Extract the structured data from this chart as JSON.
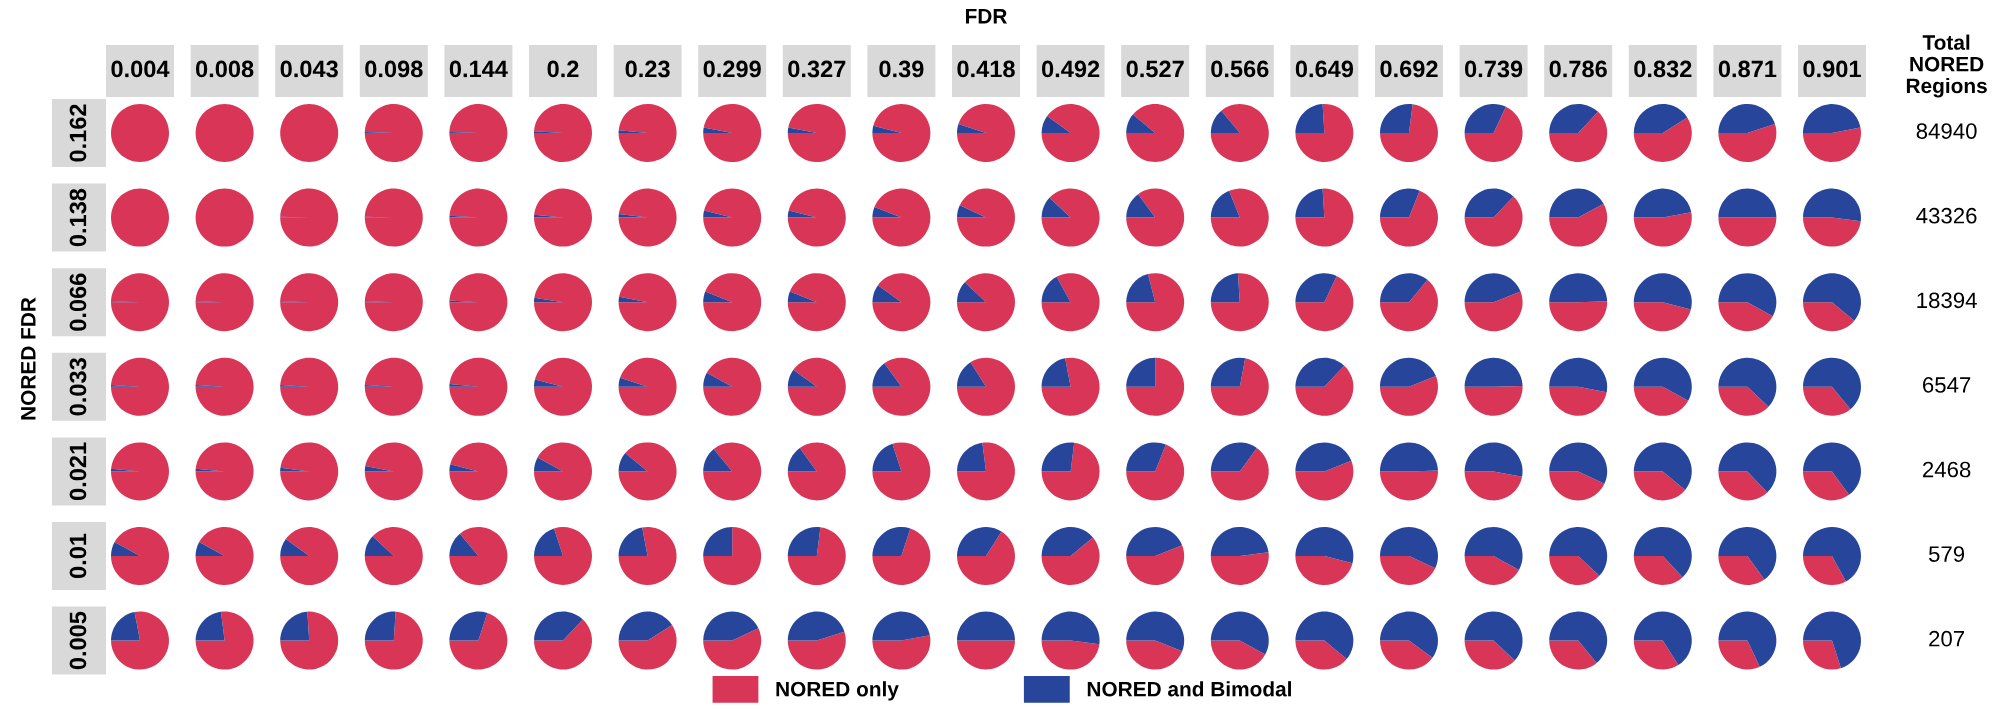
{
  "chart_data": [
    {
      "type": "other",
      "ylabel": "NORED FDR"
    },
    {
      "type": "pie",
      "title": "FDR",
      "ylabel": "0.162",
      "y2label": "84940",
      "annotations": [
        "Total\nNORED\nRegions"
      ],
      "legend": "bottom",
      "categories": [
        "NORED only",
        "NORED and Bimodal"
      ],
      "colors": [
        "#d93657",
        "#27469b"
      ],
      "series": [
        {
          "name": "0.004",
          "values": [
            100,
            0
          ]
        },
        {
          "name": "0.008",
          "values": [
            100,
            0
          ]
        },
        {
          "name": "0.043",
          "values": [
            100,
            0
          ]
        },
        {
          "name": "0.098",
          "values": [
            99.5,
            0.5
          ]
        },
        {
          "name": "0.144",
          "values": [
            99.5,
            0.5
          ]
        },
        {
          "name": "0.2",
          "values": [
            99,
            1
          ]
        },
        {
          "name": "0.23",
          "values": [
            98.5,
            1.5
          ]
        },
        {
          "name": "0.299",
          "values": [
            97,
            3
          ]
        },
        {
          "name": "0.327",
          "values": [
            97,
            3
          ]
        },
        {
          "name": "0.39",
          "values": [
            96,
            4
          ]
        },
        {
          "name": "0.418",
          "values": [
            95,
            5
          ]
        },
        {
          "name": "0.492",
          "values": [
            90,
            10
          ]
        },
        {
          "name": "0.527",
          "values": [
            89,
            11
          ]
        },
        {
          "name": "0.566",
          "values": [
            86,
            14
          ]
        },
        {
          "name": "0.649",
          "values": [
            76,
            24
          ]
        },
        {
          "name": "0.692",
          "values": [
            73,
            27
          ]
        },
        {
          "name": "0.739",
          "values": [
            68,
            32
          ]
        },
        {
          "name": "0.786",
          "values": [
            63,
            37
          ]
        },
        {
          "name": "0.832",
          "values": [
            59,
            41
          ]
        },
        {
          "name": "0.871",
          "values": [
            55,
            45
          ]
        },
        {
          "name": "0.901",
          "values": [
            53,
            47
          ]
        }
      ]
    },
    {
      "type": "pie",
      "ylabel": "0.138",
      "y2label": "43326",
      "colors": [
        "#d93657",
        "#27469b"
      ],
      "series": [
        {
          "values": [
            100,
            0
          ]
        },
        {
          "values": [
            100,
            0
          ]
        },
        {
          "values": [
            99.5,
            0.5
          ]
        },
        {
          "values": [
            99.5,
            0.5
          ]
        },
        {
          "values": [
            99,
            1
          ]
        },
        {
          "values": [
            98.5,
            1.5
          ]
        },
        {
          "values": [
            98,
            2
          ]
        },
        {
          "values": [
            96,
            4
          ]
        },
        {
          "values": [
            96,
            4
          ]
        },
        {
          "values": [
            94,
            6
          ]
        },
        {
          "values": [
            93,
            7
          ]
        },
        {
          "values": [
            88,
            12
          ]
        },
        {
          "values": [
            85,
            15
          ]
        },
        {
          "values": [
            81,
            19
          ]
        },
        {
          "values": [
            76,
            24
          ]
        },
        {
          "values": [
            69,
            31
          ]
        },
        {
          "values": [
            63,
            37
          ]
        },
        {
          "values": [
            58,
            42
          ]
        },
        {
          "values": [
            53,
            47
          ]
        },
        {
          "values": [
            50,
            50
          ]
        },
        {
          "values": [
            48,
            52
          ]
        }
      ]
    },
    {
      "type": "pie",
      "ylabel": "0.066",
      "y2label": "18394",
      "colors": [
        "#d93657",
        "#27469b"
      ],
      "series": [
        {
          "values": [
            99.5,
            0.5
          ]
        },
        {
          "values": [
            99.5,
            0.5
          ]
        },
        {
          "values": [
            99.5,
            0.5
          ]
        },
        {
          "values": [
            99.5,
            0.5
          ]
        },
        {
          "values": [
            99,
            1
          ]
        },
        {
          "values": [
            97.5,
            2.5
          ]
        },
        {
          "values": [
            97,
            3
          ]
        },
        {
          "values": [
            94,
            6
          ]
        },
        {
          "values": [
            94,
            6
          ]
        },
        {
          "values": [
            90,
            10
          ]
        },
        {
          "values": [
            88,
            12
          ]
        },
        {
          "values": [
            83,
            17
          ]
        },
        {
          "values": [
            79,
            21
          ]
        },
        {
          "values": [
            76,
            24
          ]
        },
        {
          "values": [
            68,
            32
          ]
        },
        {
          "values": [
            64,
            36
          ]
        },
        {
          "values": [
            56,
            44
          ]
        },
        {
          "values": [
            50.5,
            49.5
          ]
        },
        {
          "values": [
            46,
            54
          ]
        },
        {
          "values": [
            42,
            58
          ]
        },
        {
          "values": [
            39,
            61
          ]
        }
      ]
    },
    {
      "type": "pie",
      "ylabel": "0.033",
      "y2label": "6547",
      "colors": [
        "#d93657",
        "#27469b"
      ],
      "series": [
        {
          "values": [
            99,
            1
          ]
        },
        {
          "values": [
            99,
            1
          ]
        },
        {
          "values": [
            99,
            1
          ]
        },
        {
          "values": [
            99,
            1
          ]
        },
        {
          "values": [
            98.5,
            1.5
          ]
        },
        {
          "values": [
            96,
            4
          ]
        },
        {
          "values": [
            95,
            5
          ]
        },
        {
          "values": [
            92,
            8
          ]
        },
        {
          "values": [
            90,
            10
          ]
        },
        {
          "values": [
            85,
            15
          ]
        },
        {
          "values": [
            84,
            16
          ]
        },
        {
          "values": [
            78,
            22
          ]
        },
        {
          "values": [
            75,
            25
          ]
        },
        {
          "values": [
            72,
            28
          ]
        },
        {
          "values": [
            63,
            37
          ]
        },
        {
          "values": [
            56,
            44
          ]
        },
        {
          "values": [
            50.5,
            49.5
          ]
        },
        {
          "values": [
            47,
            53
          ]
        },
        {
          "values": [
            42,
            58
          ]
        },
        {
          "values": [
            38,
            62
          ]
        },
        {
          "values": [
            36,
            64
          ]
        }
      ]
    },
    {
      "type": "pie",
      "ylabel": "0.021",
      "y2label": "2468",
      "colors": [
        "#d93657",
        "#27469b"
      ],
      "series": [
        {
          "values": [
            98.5,
            1.5
          ]
        },
        {
          "values": [
            98.5,
            1.5
          ]
        },
        {
          "values": [
            98,
            2
          ]
        },
        {
          "values": [
            97,
            3
          ]
        },
        {
          "values": [
            96,
            4
          ]
        },
        {
          "values": [
            92,
            8
          ]
        },
        {
          "values": [
            89,
            11
          ]
        },
        {
          "values": [
            86,
            14
          ]
        },
        {
          "values": [
            85,
            15
          ]
        },
        {
          "values": [
            80,
            20
          ]
        },
        {
          "values": [
            77,
            23
          ]
        },
        {
          "values": [
            73,
            27
          ]
        },
        {
          "values": [
            69,
            31
          ]
        },
        {
          "values": [
            65,
            35
          ]
        },
        {
          "values": [
            56,
            44
          ]
        },
        {
          "values": [
            50.5,
            49.5
          ]
        },
        {
          "values": [
            47,
            53
          ]
        },
        {
          "values": [
            43,
            57
          ]
        },
        {
          "values": [
            39,
            61
          ]
        },
        {
          "values": [
            37,
            63
          ]
        },
        {
          "values": [
            35,
            65
          ]
        }
      ]
    },
    {
      "type": "pie",
      "ylabel": "0.01",
      "y2label": "579",
      "colors": [
        "#d93657",
        "#27469b"
      ],
      "series": [
        {
          "values": [
            92,
            8
          ]
        },
        {
          "values": [
            92,
            8
          ]
        },
        {
          "values": [
            90,
            10
          ]
        },
        {
          "values": [
            88,
            12
          ]
        },
        {
          "values": [
            86,
            14
          ]
        },
        {
          "values": [
            80,
            20
          ]
        },
        {
          "values": [
            78,
            22
          ]
        },
        {
          "values": [
            75,
            25
          ]
        },
        {
          "values": [
            73,
            27
          ]
        },
        {
          "values": [
            70,
            30
          ]
        },
        {
          "values": [
            66,
            34
          ]
        },
        {
          "values": [
            61,
            39
          ]
        },
        {
          "values": [
            56,
            44
          ]
        },
        {
          "values": [
            52,
            48
          ]
        },
        {
          "values": [
            46,
            54
          ]
        },
        {
          "values": [
            43,
            57
          ]
        },
        {
          "values": [
            42,
            58
          ]
        },
        {
          "values": [
            38,
            62
          ]
        },
        {
          "values": [
            37,
            63
          ]
        },
        {
          "values": [
            35,
            65
          ]
        },
        {
          "values": [
            33,
            67
          ]
        }
      ]
    },
    {
      "type": "pie",
      "ylabel": "0.005",
      "y2label": "207",
      "colors": [
        "#d93657",
        "#27469b"
      ],
      "series": [
        {
          "values": [
            78,
            22
          ]
        },
        {
          "values": [
            77,
            23
          ]
        },
        {
          "values": [
            76,
            24
          ]
        },
        {
          "values": [
            74,
            26
          ]
        },
        {
          "values": [
            70,
            30
          ]
        },
        {
          "values": [
            63,
            37
          ]
        },
        {
          "values": [
            59,
            41
          ]
        },
        {
          "values": [
            57,
            43
          ]
        },
        {
          "values": [
            55,
            45
          ]
        },
        {
          "values": [
            53,
            47
          ]
        },
        {
          "values": [
            50,
            50
          ]
        },
        {
          "values": [
            48,
            52
          ]
        },
        {
          "values": [
            44,
            56
          ]
        },
        {
          "values": [
            42,
            58
          ]
        },
        {
          "values": [
            39,
            61
          ]
        },
        {
          "values": [
            40,
            60
          ]
        },
        {
          "values": [
            38,
            62
          ]
        },
        {
          "values": [
            36,
            64
          ]
        },
        {
          "values": [
            34,
            66
          ]
        },
        {
          "values": [
            32,
            68
          ]
        },
        {
          "values": [
            30,
            70
          ]
        }
      ]
    }
  ]
}
